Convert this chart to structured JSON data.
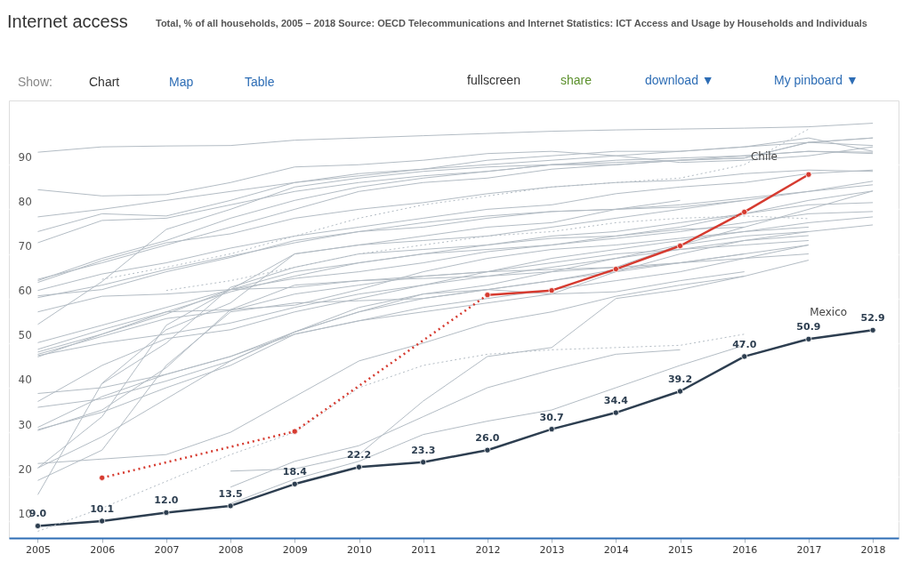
{
  "chart_data": {
    "type": "line",
    "title": "Internet access",
    "subtitle": "Total, % of all households, 2005 – 2018 Source: OECD Telecommunications and Internet Statistics: ICT Access and Usage by Households and Individuals",
    "annotations": [
      "Show:",
      "Chart",
      "Map",
      "Table",
      "fullscreen",
      "share",
      "download ▼",
      "My pinboard ▼"
    ],
    "x": [
      2005,
      2006,
      2007,
      2008,
      2009,
      2010,
      2011,
      2012,
      2013,
      2014,
      2015,
      2016,
      2017,
      2018
    ],
    "xlim": [
      2004.55,
      2018.4
    ],
    "xticks": [
      2005,
      2006,
      2007,
      2008,
      2009,
      2010,
      2011,
      2012,
      2013,
      2014,
      2015,
      2016,
      2017,
      2018
    ],
    "ylim": [
      6.3,
      104.4
    ],
    "yticks": [
      10,
      20,
      30,
      40,
      50,
      60,
      70,
      80,
      90
    ],
    "grid": "y",
    "marker": "none",
    "line_style": "solid",
    "series": [
      {
        "color": "#b3bcc4",
        "values": [
          92.8,
          94,
          94.2,
          94.3,
          95.5,
          96,
          96.5,
          97,
          97.5,
          97.8,
          98,
          98.2,
          98.5,
          99.3
        ]
      },
      {
        "color": "#b3bcc4",
        "values": [
          84.4,
          83,
          83.3,
          86,
          89.5,
          90,
          91,
          92.5,
          93,
          92,
          90.5,
          91,
          92,
          94
        ]
      },
      {
        "color": "#b3bcc4",
        "values": [
          78.3,
          80,
          82,
          84,
          86,
          88,
          89,
          90,
          91,
          92,
          93,
          94,
          95,
          96
        ]
      },
      {
        "color": "#b3bcc4",
        "values": [
          75,
          79,
          78.5,
          82,
          86,
          87.5,
          89,
          91,
          92,
          93,
          93,
          94,
          96,
          93
        ]
      },
      {
        "color": "#b3bcc4",
        "values": [
          72.5,
          77.5,
          78,
          81,
          84,
          86,
          87.5,
          88.5,
          90,
          91,
          91.5,
          92,
          93,
          92.8
        ]
      },
      {
        "color": "#b3bcc4",
        "values": [
          64.3,
          68,
          72,
          76,
          80,
          84,
          86,
          87,
          89,
          90,
          91,
          92,
          93,
          92.5
        ]
      },
      {
        "color": "#b3bcc4",
        "values": [
          64,
          69,
          73,
          78,
          82,
          85,
          87,
          88.5,
          90,
          90.5,
          91,
          91.5,
          95,
          94.3
        ]
      },
      {
        "color": "#b3bcc4",
        "values": [
          63.6,
          68.5,
          72.5,
          74.5,
          78,
          80,
          81.5,
          83.5,
          85,
          86,
          86.5,
          88,
          88.8,
          88.5
        ]
      },
      {
        "color": "#b3bcc4",
        "values": [
          61.8,
          65.5,
          68,
          71.3,
          74,
          76,
          78,
          80,
          81,
          83.5,
          85,
          86,
          88,
          88.8
        ]
      },
      {
        "color": "#b3bcc4",
        "values": [
          60.2,
          63,
          66.5,
          69.5,
          72.5,
          75,
          76,
          78,
          79.5,
          80,
          80.5,
          82,
          84,
          86.3
        ]
      },
      {
        "color": "#b3bcc4",
        "values": [
          60.6,
          62,
          66,
          69.2,
          73,
          75,
          77,
          78.5,
          79.5,
          80,
          81,
          82.5,
          84,
          85.5
        ]
      },
      {
        "color": "#b3bcc4",
        "values": [
          57,
          60.5,
          61,
          62,
          62.5,
          64,
          65,
          66,
          66.5,
          67,
          72,
          76,
          80,
          84.1
        ]
      },
      {
        "color": "#b3bcc4",
        "values": [
          54.2,
          63.8,
          75.5,
          80,
          85,
          87,
          88.5,
          89.5,
          90,
          90,
          91,
          91.5,
          95,
          96
        ]
      },
      {
        "color": "#b3bcc4",
        "values": [
          50.1,
          54,
          58,
          62,
          66,
          68,
          70,
          71,
          72,
          74,
          76,
          79,
          82,
          84.1
        ]
      },
      {
        "color": "#b3bcc4",
        "values": [
          48.6,
          53,
          57,
          61.5,
          65,
          68,
          70,
          72,
          74,
          75,
          77,
          79,
          81,
          81.5
        ]
      },
      {
        "color": "#b3bcc4",
        "values": [
          48,
          52,
          56.5,
          62,
          64.5,
          66,
          68,
          70.5,
          72,
          73.5,
          75,
          77,
          79,
          79.5
        ]
      },
      {
        "color": "#b3bcc4",
        "values": [
          47.5,
          51.5,
          55.5,
          57.3,
          61,
          63,
          65,
          66,
          69,
          71,
          73,
          75,
          77,
          78.3
        ]
      },
      {
        "color": "#b3bcc4",
        "values": [
          47.2,
          50,
          52,
          54.5,
          58,
          61,
          63,
          65,
          67,
          69,
          72,
          74,
          75,
          76.5
        ]
      },
      {
        "color": "#b3bcc4",
        "values": [
          46.9,
          52,
          57,
          57.5,
          58.5,
          62,
          66,
          69,
          71,
          72,
          73.5,
          75,
          76,
          null
        ]
      },
      {
        "color": "#b3bcc4",
        "values": [
          38.7,
          40,
          43,
          47,
          52,
          55,
          58,
          60,
          62,
          64,
          66,
          69,
          72,
          null
        ]
      },
      {
        "color": "#b3bcc4",
        "values": [
          36.9,
          45,
          51,
          53,
          57,
          60,
          63,
          66,
          68,
          70,
          71,
          73,
          74.1,
          null
        ]
      },
      {
        "color": "#b3bcc4",
        "values": [
          35.6,
          37.5,
          41.5,
          46,
          52.5,
          57,
          61,
          63,
          66,
          69,
          71,
          72,
          73,
          null
        ]
      },
      {
        "color": "#b3bcc4",
        "values": [
          31.1,
          38,
          43,
          47,
          52.5,
          58,
          61,
          62,
          64,
          66.5,
          68,
          70,
          72,
          null
        ]
      },
      {
        "color": "#b3bcc4",
        "values": [
          30.6,
          34.5,
          40,
          45,
          52,
          55,
          57,
          59,
          61,
          66,
          70,
          73,
          75,
          null
        ]
      },
      {
        "color": "#b3bcc4",
        "values": [
          30.4,
          35,
          44.5,
          57.5,
          63,
          64,
          64.5,
          65,
          66,
          67,
          68,
          69,
          70,
          null
        ]
      },
      {
        "color": "#b3bcc4",
        "values": [
          23,
          24,
          25,
          30,
          38,
          46,
          50,
          54.5,
          57,
          60.5,
          63,
          65,
          68.6,
          null
        ]
      },
      {
        "color": "#b3bcc4",
        "values": [
          22,
          29,
          37.5,
          46,
          52.5,
          57,
          60,
          62,
          61,
          61.5,
          64,
          66,
          null,
          null
        ]
      },
      {
        "color": "#b3bcc4",
        "values": [
          22,
          33.5,
          54,
          62,
          70,
          72,
          73,
          74,
          76,
          78,
          80,
          82,
          null,
          null
        ]
      },
      {
        "color": "#b3bcc4",
        "values": [
          19.2,
          26,
          45,
          57,
          59,
          59.5,
          60,
          62,
          64,
          66,
          68,
          70,
          null,
          null
        ]
      },
      {
        "color": "#b3bcc4",
        "values": [
          16,
          41,
          53,
          59,
          70,
          72,
          74,
          76,
          77,
          80,
          82,
          null,
          null,
          null
        ]
      },
      {
        "color": "#b3bcc4",
        "line_style": "dotted",
        "values": [
          7.8,
          13,
          19,
          25,
          30,
          40,
          45,
          47.5,
          48.5,
          49,
          49.5,
          52,
          null,
          null
        ]
      },
      {
        "color": "#b3bcc4",
        "line_style": "dotted",
        "values": [
          null,
          64.3,
          67,
          70,
          74,
          78,
          81,
          83,
          85,
          86,
          87,
          90,
          98,
          null
        ]
      },
      {
        "color": "#b3bcc4",
        "line_style": "dotted",
        "values": [
          null,
          null,
          61.8,
          64,
          67,
          70,
          72,
          74,
          75,
          77,
          78,
          78.5,
          77.9,
          null
        ]
      },
      {
        "color": "#b3bcc4",
        "values": [
          null,
          null,
          null,
          21.3,
          21.8,
          25,
          37,
          47,
          49,
          60,
          62,
          65,
          null,
          null
        ]
      },
      {
        "color": "#b3bcc4",
        "values": [
          null,
          null,
          null,
          17.7,
          23.5,
          27,
          33.5,
          40,
          44,
          47.5,
          48.5,
          null,
          null,
          null
        ]
      },
      {
        "color": "#b3bcc4",
        "values": [
          null,
          40.9,
          50,
          62.5,
          67,
          70,
          71,
          72,
          73.5,
          74,
          75.5,
          76,
          null,
          null
        ]
      },
      {
        "color": "#b3bcc4",
        "values": [
          null,
          null,
          null,
          14,
          19.5,
          23.5,
          29.5,
          32.5,
          35,
          40,
          45,
          49.5,
          null,
          null
        ]
      },
      {
        "name": "Chile",
        "color": "#d63b30",
        "marker": "circle",
        "values": [
          null,
          19.8,
          null,
          null,
          30.2,
          null,
          null,
          60.8,
          61.8,
          66.6,
          71.8,
          79.4,
          87.8,
          null
        ]
      },
      {
        "name": "Mexico",
        "color": "#2d3e50",
        "marker": "circle",
        "values": [
          9.0,
          10.1,
          12.0,
          13.5,
          18.4,
          22.2,
          23.3,
          26.0,
          30.7,
          34.4,
          39.2,
          47.0,
          50.9,
          52.9
        ],
        "value_labels": [
          "9.0",
          "10.1",
          "12.0",
          "13.5",
          "18.4",
          "22.2",
          "23.3",
          "26.0",
          "30.7",
          "34.4",
          "39.2",
          "47.0",
          "50.9",
          "52.9"
        ]
      }
    ]
  }
}
